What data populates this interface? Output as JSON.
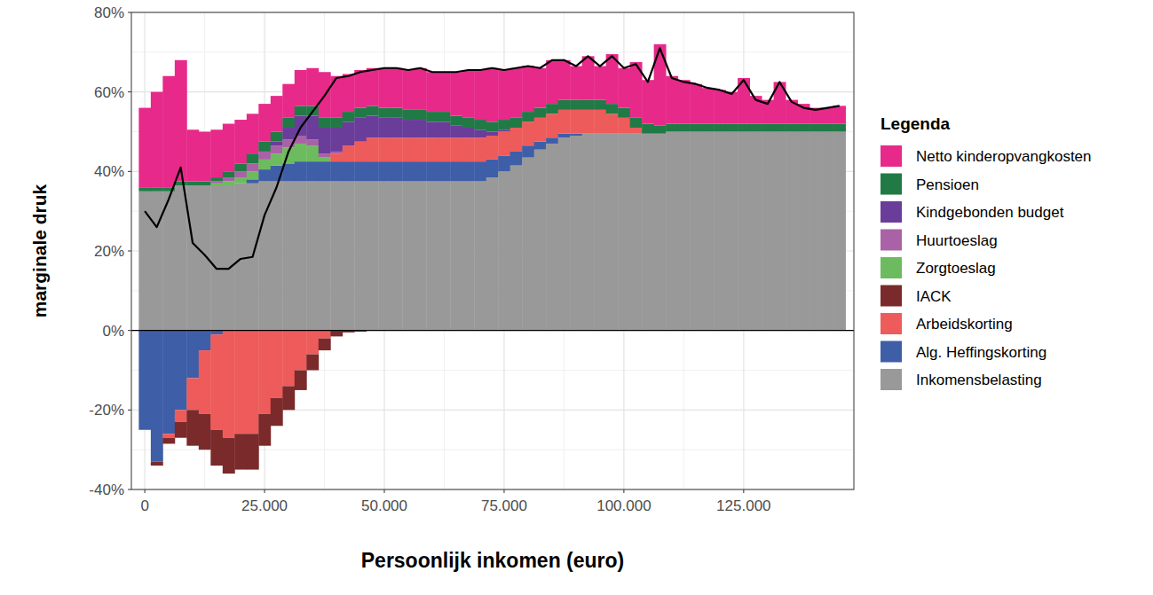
{
  "chart_data": {
    "type": "bar",
    "x_label": "Persoonlijk inkomen (euro)",
    "y_label": "marginale druk",
    "legend_title": "Legenda",
    "legend": "right",
    "stacked": true,
    "grid": true,
    "xlim": [
      -2800,
      148000
    ],
    "ylim": [
      -40,
      80
    ],
    "xticks": [
      0,
      {
        "value": 25000,
        "label": "25.000"
      },
      {
        "value": 50000,
        "label": "50.000"
      },
      {
        "value": 75000,
        "label": "75.000"
      },
      {
        "value": 100000,
        "label": "100.000"
      },
      {
        "value": 125000,
        "label": "125.000"
      }
    ],
    "yticks": [
      {
        "value": -40,
        "label": "-40%"
      },
      {
        "value": -20,
        "label": "-20%"
      },
      {
        "value": 0,
        "label": "0%"
      },
      {
        "value": 20,
        "label": "20%"
      },
      {
        "value": 40,
        "label": "40%"
      },
      {
        "value": 60,
        "label": "60%"
      },
      {
        "value": 80,
        "label": "80%"
      }
    ],
    "x": [
      0,
      2500,
      5000,
      7500,
      10000,
      12500,
      15000,
      17500,
      20000,
      22500,
      25000,
      27500,
      30000,
      32500,
      35000,
      37500,
      40000,
      42500,
      45000,
      47500,
      50000,
      52500,
      55000,
      57500,
      60000,
      62500,
      65000,
      67500,
      70000,
      72500,
      75000,
      77500,
      80000,
      82500,
      85000,
      87500,
      90000,
      92500,
      95000,
      97500,
      100000,
      102500,
      105000,
      107500,
      110000,
      112500,
      115000,
      117500,
      120000,
      122500,
      125000,
      127500,
      130000,
      132500,
      135000,
      137500,
      140000,
      142500,
      145000
    ],
    "series": [
      {
        "name": "Netto kinderopvangkosten",
        "color": "#e7298a",
        "values": [
          20,
          24,
          28,
          30.5,
          13,
          12.5,
          12,
          12,
          11,
          10,
          9.5,
          9,
          8.5,
          9,
          9.5,
          11.5,
          10.5,
          9.5,
          9.5,
          9.5,
          10,
          10,
          10,
          10.5,
          10,
          10,
          11,
          12,
          12.5,
          13.5,
          12.5,
          12.5,
          11.5,
          10,
          11,
          10,
          8.5,
          11,
          8.5,
          12.5,
          10,
          14,
          11,
          20.5,
          12,
          11,
          10,
          9,
          8.5,
          8,
          11.5,
          7,
          6,
          10.5,
          6,
          5,
          4,
          4,
          4.5
        ]
      },
      {
        "name": "Pensioen",
        "color": "#217a45",
        "values": [
          1,
          1,
          1,
          1,
          1,
          1,
          1,
          1.5,
          2,
          2.5,
          2.5,
          2.5,
          2.5,
          2.5,
          2.5,
          2.5,
          2.5,
          2.5,
          2.5,
          2.5,
          2.5,
          2.5,
          2.5,
          2.5,
          2.5,
          2.5,
          2.5,
          2.5,
          2.5,
          2.5,
          2.5,
          2.5,
          2.5,
          2.5,
          2.5,
          2.5,
          2.5,
          2.5,
          2.5,
          2.5,
          2.5,
          2.5,
          2.5,
          2,
          2,
          2,
          2,
          2,
          2,
          2,
          2,
          2,
          2,
          2,
          2,
          2,
          2,
          2,
          2
        ]
      },
      {
        "name": "Kindgebonden budget",
        "color": "#6a3d9a",
        "values": [
          0,
          0,
          0,
          0,
          0,
          0,
          0,
          0,
          0,
          0,
          0,
          1,
          3,
          5,
          6,
          6.5,
          6,
          6,
          6,
          5.5,
          5,
          5,
          4.5,
          4.5,
          4,
          4,
          3,
          2.5,
          2,
          1,
          0.5,
          0,
          0,
          0,
          0,
          0,
          0,
          0,
          0,
          0,
          0,
          0,
          0,
          0,
          0,
          0,
          0,
          0,
          0,
          0,
          0,
          0,
          0,
          0,
          0,
          0,
          0,
          0,
          0
        ]
      },
      {
        "name": "Huurtoeslag",
        "color": "#a962a6",
        "values": [
          0,
          0,
          0,
          0,
          0,
          0,
          0.5,
          1,
          1.5,
          2,
          2,
          2,
          2,
          2,
          1.5,
          1,
          0.5,
          0,
          0,
          0,
          0,
          0,
          0,
          0,
          0,
          0,
          0,
          0,
          0,
          0,
          0,
          0,
          0,
          0,
          0,
          0,
          0,
          0,
          0,
          0,
          0,
          0,
          0,
          0,
          0,
          0,
          0,
          0,
          0,
          0,
          0,
          0,
          0,
          0,
          0,
          0,
          0,
          0,
          0
        ]
      },
      {
        "name": "Zorgtoeslag",
        "color": "#6dbb5f",
        "values": [
          0,
          0,
          0,
          0,
          0,
          0,
          0.5,
          1,
          1.5,
          2,
          2.5,
          3,
          4,
          4.5,
          4,
          1,
          0,
          0,
          0,
          0,
          0,
          0,
          0,
          0,
          0,
          0,
          0,
          0,
          0,
          0,
          0,
          0,
          0,
          0,
          0,
          0,
          0,
          0,
          0,
          0,
          0,
          0,
          0,
          0,
          0,
          0,
          0,
          0,
          0,
          0,
          0,
          0,
          0,
          0,
          0,
          0,
          0,
          0,
          0
        ]
      },
      {
        "name": "IACK",
        "color": "#7a2a2a",
        "values": [
          0,
          -1,
          -1.5,
          -4,
          -9,
          -9,
          -9,
          -9,
          -9,
          -9,
          -8,
          -7,
          -6,
          -5,
          -4,
          -3,
          -1.5,
          -0.5,
          -0.3,
          0,
          0,
          0,
          0,
          0,
          0,
          0,
          0,
          0,
          0,
          0,
          0,
          0,
          0,
          0,
          0,
          0,
          0,
          0,
          0,
          0,
          0,
          0,
          0,
          0,
          0,
          0,
          0,
          0,
          0,
          0,
          0,
          0,
          0,
          0,
          0,
          0,
          0,
          0,
          0
        ]
      },
      {
        "name": "Arbeidskorting",
        "color": "#ee5b5b",
        "values": [
          0,
          0,
          -1,
          -3,
          -8,
          -16,
          -24,
          -27,
          -26,
          -26,
          -21,
          -17,
          -14,
          -10,
          -6,
          -2,
          2,
          4,
          5,
          6,
          6,
          6,
          6,
          6,
          6,
          6,
          6,
          6,
          6,
          6,
          6,
          6,
          6,
          6,
          6,
          6,
          6,
          6,
          6,
          5,
          4,
          1.5,
          0,
          0,
          0,
          0,
          0,
          0,
          0,
          0,
          0,
          0,
          0,
          0,
          0,
          0,
          0,
          0,
          0
        ]
      },
      {
        "name": "Alg. Heffingskorting",
        "color": "#3f5ea8",
        "values": [
          -25,
          -33,
          -26,
          -20,
          -12,
          -5,
          -1,
          0,
          0,
          1,
          3,
          4,
          4.5,
          5,
          5,
          5,
          5,
          5,
          5,
          5,
          5,
          5,
          5,
          5,
          5,
          5,
          5,
          5,
          5,
          4.5,
          4,
          3.5,
          3,
          2,
          1.5,
          1,
          0.5,
          0,
          0,
          0,
          0,
          0,
          0,
          0,
          0,
          0,
          0,
          0,
          0,
          0,
          0,
          0,
          0,
          0,
          0,
          0,
          0,
          0,
          0
        ]
      },
      {
        "name": "Inkomensbelasting",
        "color": "#999999",
        "values": [
          35,
          35,
          35,
          36.5,
          36.5,
          36.5,
          36.5,
          36.5,
          37,
          37,
          37.5,
          37.5,
          37.5,
          37.5,
          37.5,
          37.5,
          37.5,
          37.5,
          37.5,
          37.5,
          37.5,
          37.5,
          37.5,
          37.5,
          37.5,
          37.5,
          37.5,
          37.5,
          37.5,
          38.5,
          40,
          41.5,
          43.5,
          45.5,
          47,
          48.5,
          49,
          49.5,
          49.5,
          49.5,
          49.5,
          49.5,
          49.5,
          49.5,
          50,
          50,
          50,
          50,
          50,
          50,
          50,
          50,
          50,
          50,
          50,
          50,
          50,
          50,
          50
        ]
      },
      {
        "type": "line",
        "color": "#000000",
        "values": [
          30,
          26,
          33,
          41,
          22,
          19,
          15.5,
          15.5,
          18,
          18.5,
          29,
          36,
          45,
          51,
          55,
          59,
          63.5,
          64,
          65,
          65.5,
          66,
          66,
          65.5,
          66,
          65,
          65,
          65,
          65.5,
          65.5,
          66,
          65.5,
          66,
          66.5,
          66,
          68,
          68,
          66.5,
          69,
          66.5,
          69,
          66,
          67,
          62.5,
          71,
          63.5,
          62.5,
          62,
          61,
          60.5,
          59.5,
          63,
          58,
          57,
          62.5,
          57.5,
          56,
          55.5,
          56,
          56.5
        ]
      }
    ]
  }
}
